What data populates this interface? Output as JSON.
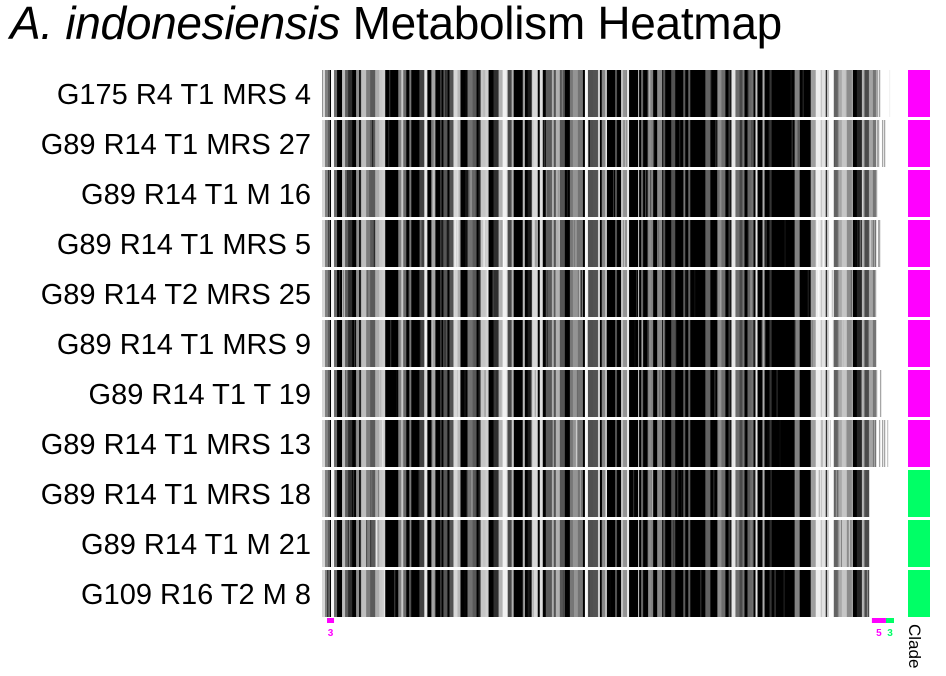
{
  "chart_data": {
    "type": "heatmap",
    "title_italic": "A. indonesiensis",
    "title_rest": " Metabolism Heatmap",
    "rows": [
      "G175 R4 T1 MRS 4",
      "G89 R14 T1 MRS 27",
      "G89 R14 T1 M 16",
      "G89 R14 T1 MRS 5",
      "G89 R14 T2 MRS 25",
      "G89 R14 T1 MRS 9",
      "G89 R14 T1 T 19",
      "G89 R14 T1 MRS 13",
      "G89 R14 T1 MRS 18",
      "G89 R14 T1 M 21",
      "G109 R16 T2 M 8"
    ],
    "clade": [
      1,
      1,
      1,
      1,
      1,
      1,
      1,
      1,
      2,
      2,
      2
    ],
    "clade_colors": {
      "1": "#ff00ff",
      "2": "#00ff66"
    },
    "clade_label": "Clade",
    "colormap": [
      "#ffffff",
      "#000000"
    ],
    "column_markers": [
      {
        "label": "3",
        "color": "#ff00ff",
        "col_from": 5,
        "col_to": 12
      },
      {
        "label": "5",
        "color": "#ff00ff",
        "col_from": 548,
        "col_to": 562
      },
      {
        "label": "3",
        "color": "#00ff66",
        "col_from": 562,
        "col_to": 570
      }
    ],
    "num_columns": 570,
    "seed": 20240611
  }
}
